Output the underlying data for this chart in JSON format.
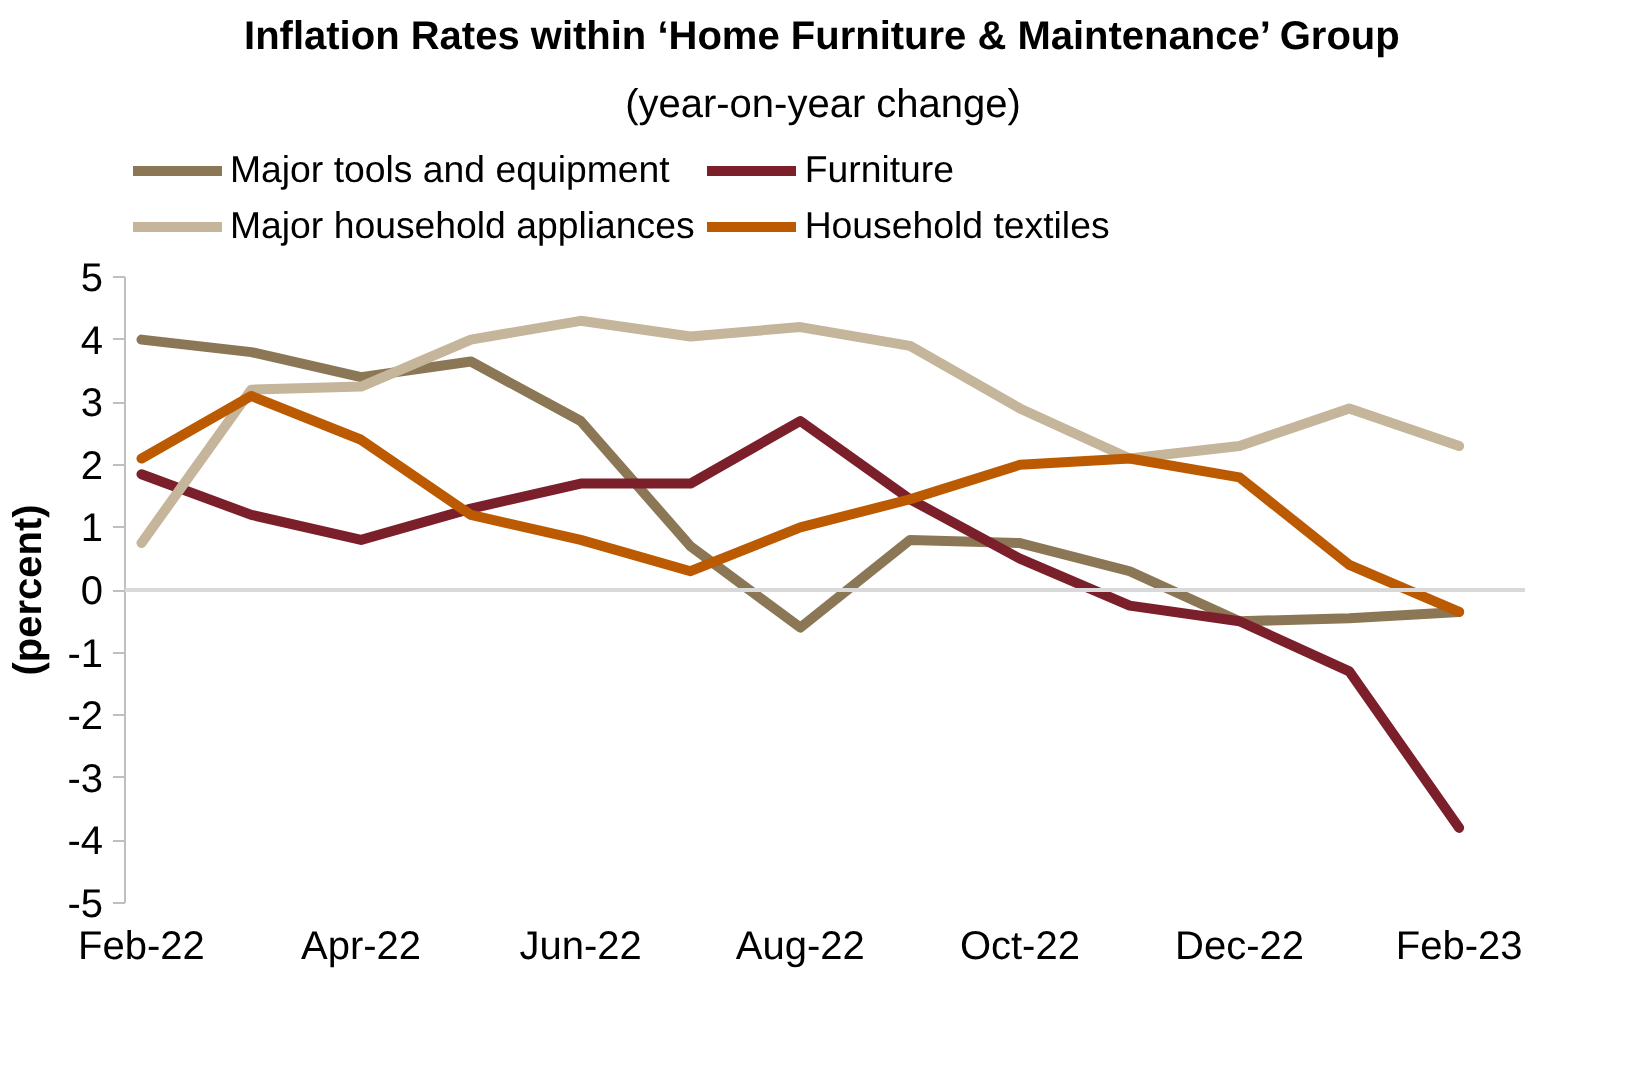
{
  "chart_data": {
    "type": "line",
    "title": "Inflation Rates within ‘Home Furniture & Maintenance’ Group",
    "subtitle": "(year-on-year change)",
    "ylabel": "(percent)",
    "categories": [
      "Feb-22",
      null,
      "Apr-22",
      null,
      "Jun-22",
      null,
      "Aug-22",
      null,
      "Oct-22",
      null,
      "Dec-22",
      null,
      "Feb-23"
    ],
    "series": [
      {
        "name": "Major tools and equipment",
        "color": "#8b7755",
        "values": [
          4.0,
          3.8,
          3.4,
          3.65,
          2.7,
          0.7,
          -0.6,
          0.8,
          0.75,
          0.3,
          -0.5,
          -0.45,
          -0.35
        ]
      },
      {
        "name": "Furniture",
        "color": "#7b1f2a",
        "values": [
          1.85,
          1.2,
          0.8,
          1.3,
          1.7,
          1.7,
          2.7,
          1.45,
          0.5,
          -0.25,
          -0.5,
          -1.3,
          -3.8
        ]
      },
      {
        "name": "Major household appliances",
        "color": "#c4b59b",
        "values": [
          0.75,
          3.2,
          3.25,
          4.0,
          4.3,
          4.05,
          4.2,
          3.9,
          2.9,
          2.1,
          2.3,
          2.9,
          2.3
        ]
      },
      {
        "name": "Household textiles",
        "color": "#bb5a00",
        "values": [
          2.1,
          3.1,
          2.4,
          1.2,
          0.8,
          0.3,
          1.0,
          1.45,
          2.0,
          2.1,
          1.8,
          0.4,
          -0.35
        ]
      }
    ],
    "ylim": [
      -5,
      5
    ],
    "yticks": [
      -5,
      -4,
      -3,
      -2,
      -1,
      0,
      1,
      2,
      3,
      4,
      5
    ],
    "grid": false,
    "ref_lines": [
      {
        "axis": "y",
        "value": 0,
        "color": "#d9d9d9"
      }
    ],
    "legend": "top",
    "marker": "none",
    "line_style": "solid"
  }
}
